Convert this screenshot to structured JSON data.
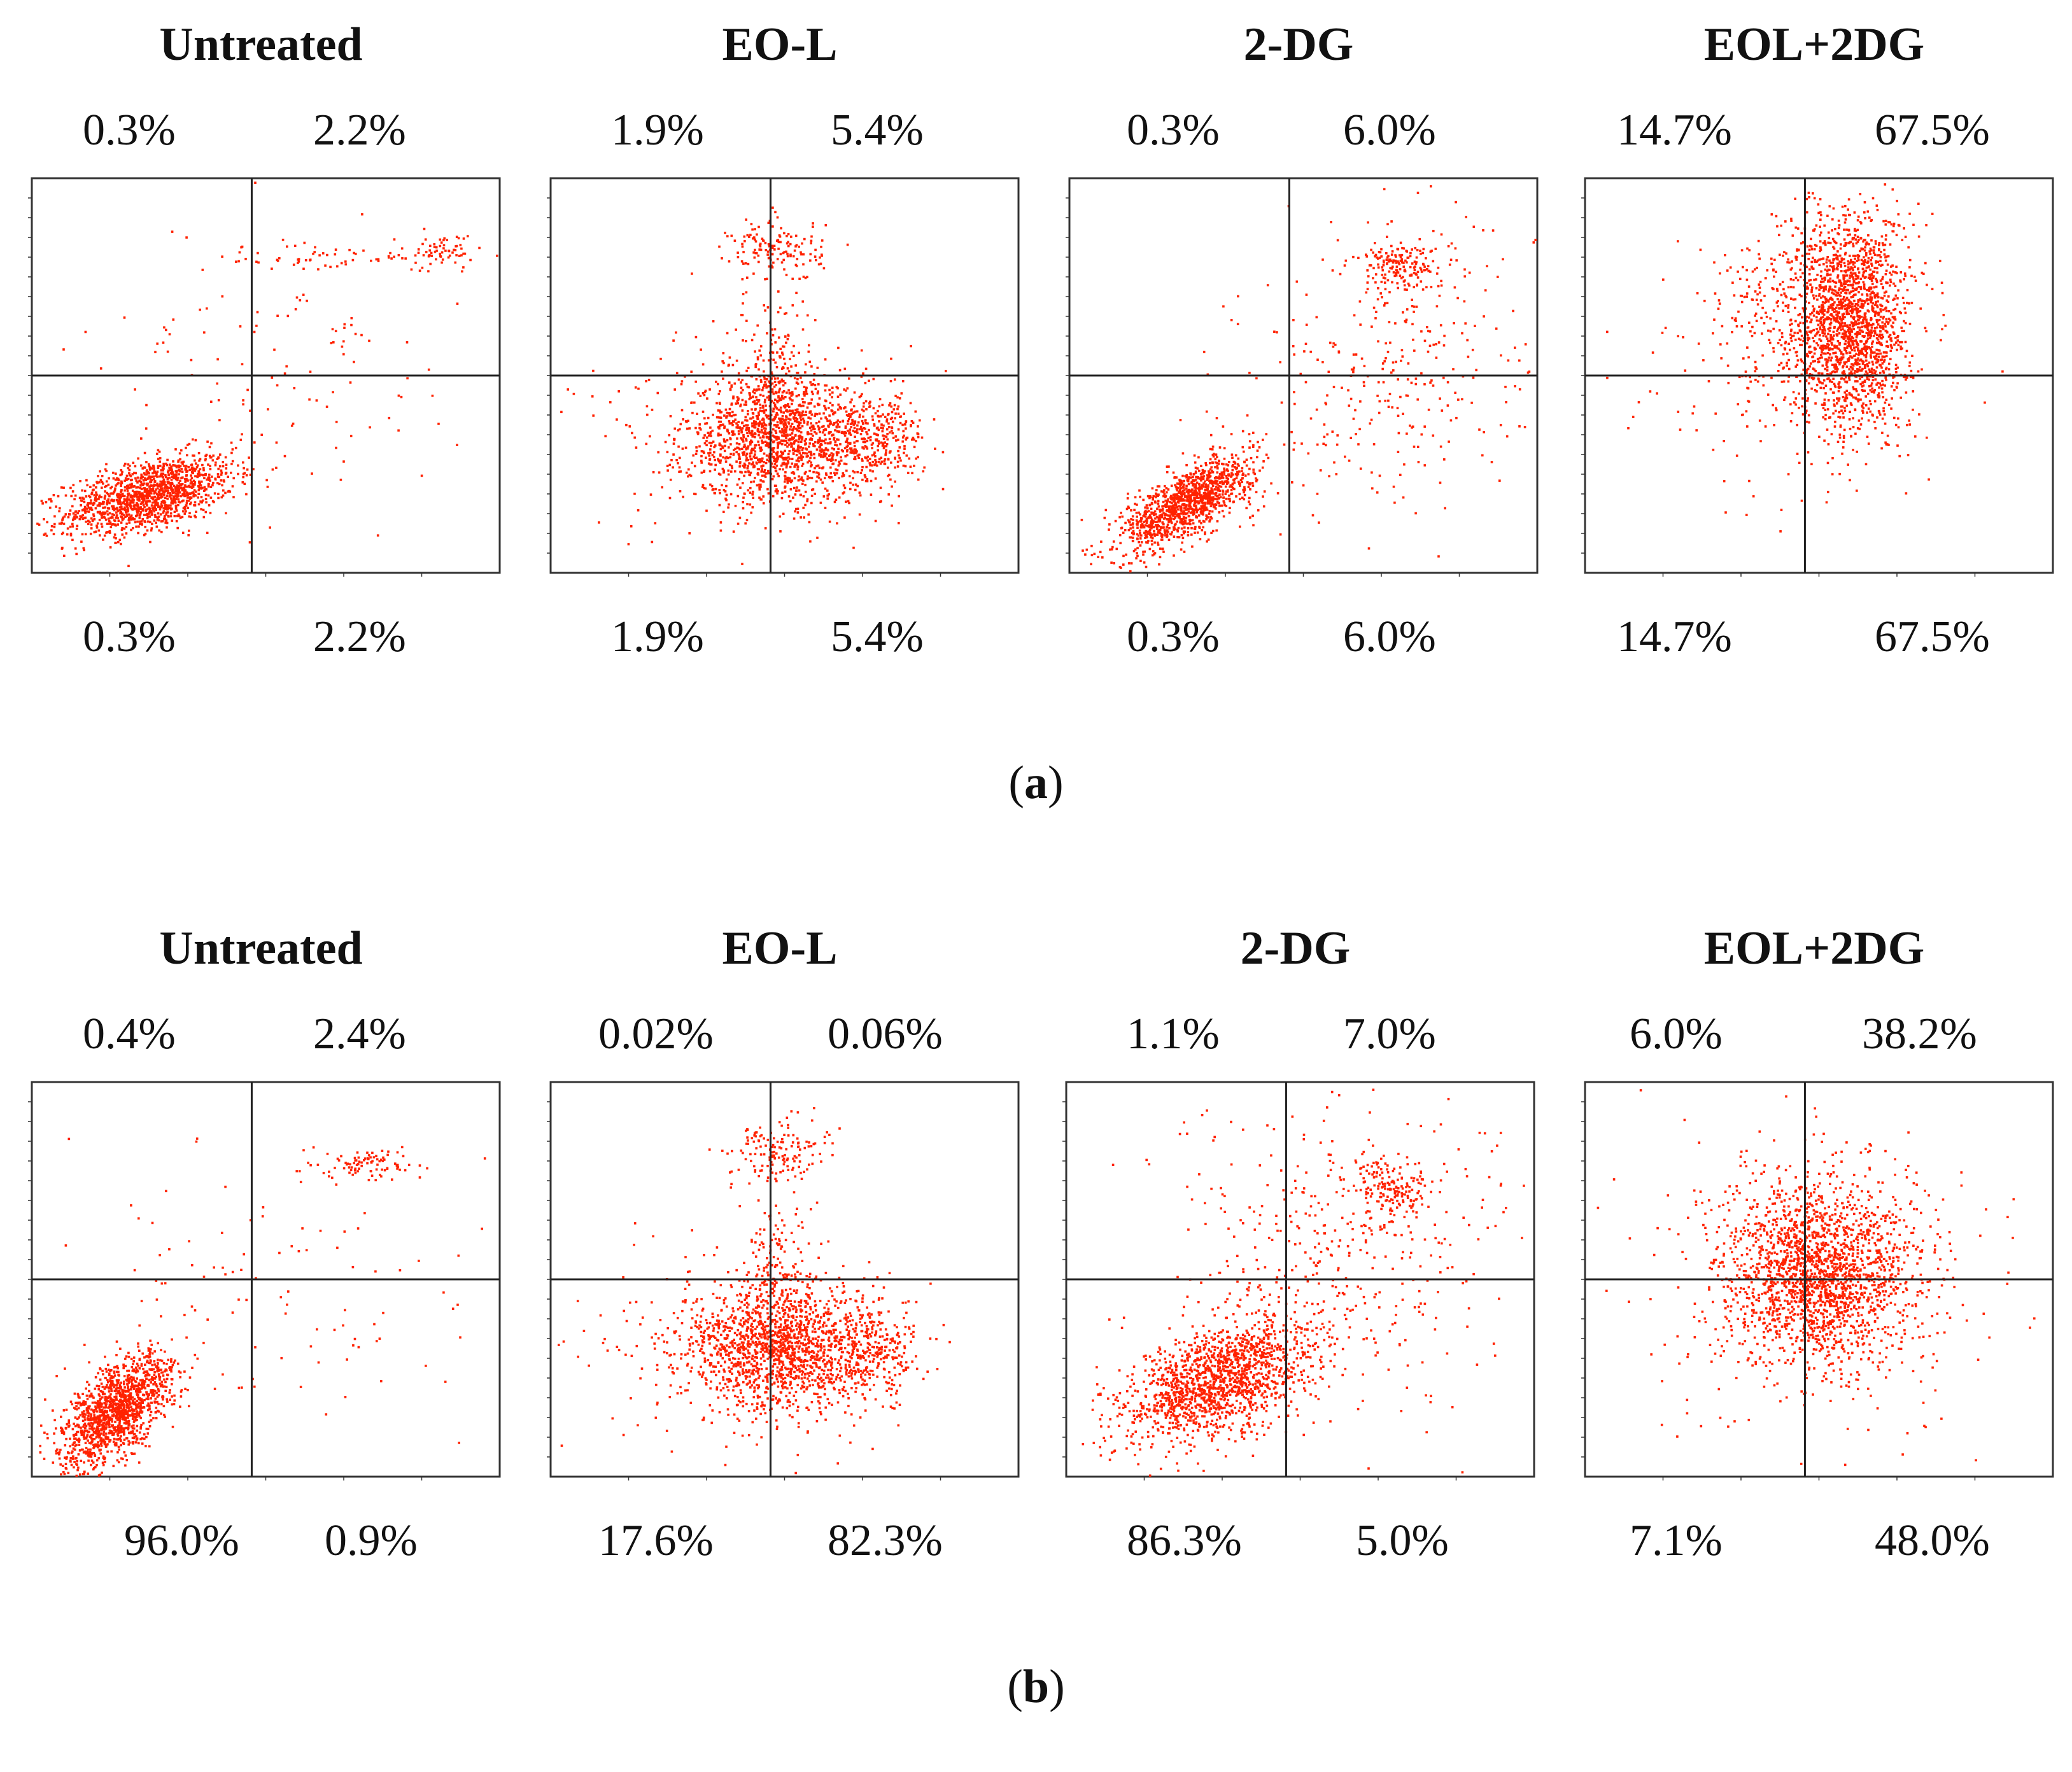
{
  "chart_data": [
    {
      "type": "scatter",
      "panel_label": "a",
      "point_color": "#ff2200",
      "plots": [
        {
          "title": "Untreated",
          "quadrants": {
            "upper_left": "0.3%",
            "upper_right": "2.2%",
            "lower_left": "0.3%",
            "lower_right": "2.2%"
          },
          "clusters": [
            {
              "cx": 0.25,
              "cy": 0.2,
              "sx": 0.09,
              "sy": 0.05,
              "n": 1400,
              "rho": 0.5
            },
            {
              "cx": 0.55,
              "cy": 0.55,
              "sx": 0.2,
              "sy": 0.2,
              "n": 120,
              "rho": 0
            },
            {
              "cx": 0.68,
              "cy": 0.8,
              "sx": 0.16,
              "sy": 0.02,
              "n": 70,
              "rho": 0
            },
            {
              "cx": 0.88,
              "cy": 0.82,
              "sx": 0.03,
              "sy": 0.02,
              "n": 50,
              "rho": 0
            }
          ]
        },
        {
          "title": "EO-L",
          "quadrants": {
            "upper_left": "1.9%",
            "upper_right": "5.4%",
            "lower_left": "1.9%",
            "lower_right": "5.4%"
          },
          "clusters": [
            {
              "cx": 0.48,
              "cy": 0.34,
              "sx": 0.1,
              "sy": 0.08,
              "n": 1400,
              "rho": 0
            },
            {
              "cx": 0.68,
              "cy": 0.34,
              "sx": 0.06,
              "sy": 0.06,
              "n": 350,
              "rho": 0
            },
            {
              "cx": 0.48,
              "cy": 0.52,
              "sx": 0.04,
              "sy": 0.1,
              "n": 150,
              "rho": 0
            },
            {
              "cx": 0.48,
              "cy": 0.82,
              "sx": 0.05,
              "sy": 0.04,
              "n": 150,
              "rho": 0
            },
            {
              "cx": 0.4,
              "cy": 0.35,
              "sx": 0.18,
              "sy": 0.14,
              "n": 150,
              "rho": 0
            }
          ]
        },
        {
          "title": "2-DG",
          "quadrants": {
            "upper_left": "0.3%",
            "upper_right": "6.0%",
            "lower_left": "0.3%",
            "lower_right": "6.0%"
          },
          "clusters": [
            {
              "cx": 0.25,
              "cy": 0.18,
              "sx": 0.07,
              "sy": 0.06,
              "n": 1200,
              "rho": 0.7
            },
            {
              "cx": 0.68,
              "cy": 0.55,
              "sx": 0.16,
              "sy": 0.2,
              "n": 350,
              "rho": 0.3
            },
            {
              "cx": 0.7,
              "cy": 0.78,
              "sx": 0.04,
              "sy": 0.03,
              "n": 160,
              "rho": 0
            }
          ]
        },
        {
          "title": "EOL+2DG",
          "quadrants": {
            "upper_left": "14.7%",
            "upper_right": "67.5%",
            "lower_left": "14.7%",
            "lower_right": "67.5%"
          },
          "clusters": [
            {
              "cx": 0.57,
              "cy": 0.64,
              "sx": 0.06,
              "sy": 0.14,
              "n": 1800,
              "rho": 0
            },
            {
              "cx": 0.46,
              "cy": 0.65,
              "sx": 0.1,
              "sy": 0.12,
              "n": 300,
              "rho": 0
            },
            {
              "cx": 0.4,
              "cy": 0.5,
              "sx": 0.16,
              "sy": 0.18,
              "n": 120,
              "rho": 0
            }
          ]
        }
      ]
    },
    {
      "type": "scatter",
      "panel_label": "b",
      "point_color": "#ff2200",
      "plots": [
        {
          "title": "Untreated",
          "quadrants": {
            "upper_left": "0.4%",
            "upper_right": "2.4%",
            "lower_left": "96.0%",
            "lower_right": "0.9%"
          },
          "clusters": [
            {
              "cx": 0.18,
              "cy": 0.17,
              "sx": 0.06,
              "sy": 0.07,
              "n": 1400,
              "rho": 0.6
            },
            {
              "cx": 0.55,
              "cy": 0.5,
              "sx": 0.22,
              "sy": 0.22,
              "n": 110,
              "rho": 0
            },
            {
              "cx": 0.72,
              "cy": 0.79,
              "sx": 0.05,
              "sy": 0.02,
              "n": 90,
              "rho": 0
            }
          ]
        },
        {
          "title": "EO-L",
          "quadrants": {
            "upper_left": "0.02%",
            "upper_right": "0.06%",
            "lower_left": "17.6%",
            "lower_right": "82.3%"
          },
          "clusters": [
            {
              "cx": 0.48,
              "cy": 0.33,
              "sx": 0.1,
              "sy": 0.08,
              "n": 1400,
              "rho": 0
            },
            {
              "cx": 0.67,
              "cy": 0.32,
              "sx": 0.06,
              "sy": 0.06,
              "n": 350,
              "rho": 0
            },
            {
              "cx": 0.48,
              "cy": 0.52,
              "sx": 0.04,
              "sy": 0.1,
              "n": 150,
              "rho": 0
            },
            {
              "cx": 0.48,
              "cy": 0.83,
              "sx": 0.05,
              "sy": 0.04,
              "n": 150,
              "rho": 0
            },
            {
              "cx": 0.4,
              "cy": 0.35,
              "sx": 0.18,
              "sy": 0.14,
              "n": 150,
              "rho": 0
            }
          ]
        },
        {
          "title": "2-DG",
          "quadrants": {
            "upper_left": "1.1%",
            "upper_right": "7.0%",
            "lower_left": "86.3%",
            "lower_right": "5.0%"
          },
          "clusters": [
            {
              "cx": 0.32,
              "cy": 0.24,
              "sx": 0.1,
              "sy": 0.08,
              "n": 1500,
              "rho": 0.5
            },
            {
              "cx": 0.58,
              "cy": 0.55,
              "sx": 0.2,
              "sy": 0.2,
              "n": 450,
              "rho": 0.2
            },
            {
              "cx": 0.7,
              "cy": 0.73,
              "sx": 0.04,
              "sy": 0.04,
              "n": 160,
              "rho": 0
            }
          ]
        },
        {
          "title": "EOL+2DG",
          "quadrants": {
            "upper_left": "6.0%",
            "upper_right": "38.2%",
            "lower_left": "7.1%",
            "lower_right": "48.0%"
          },
          "clusters": [
            {
              "cx": 0.5,
              "cy": 0.52,
              "sx": 0.1,
              "sy": 0.11,
              "n": 1800,
              "rho": 0
            },
            {
              "cx": 0.5,
              "cy": 0.5,
              "sx": 0.18,
              "sy": 0.18,
              "n": 400,
              "rho": 0
            }
          ]
        }
      ]
    }
  ]
}
